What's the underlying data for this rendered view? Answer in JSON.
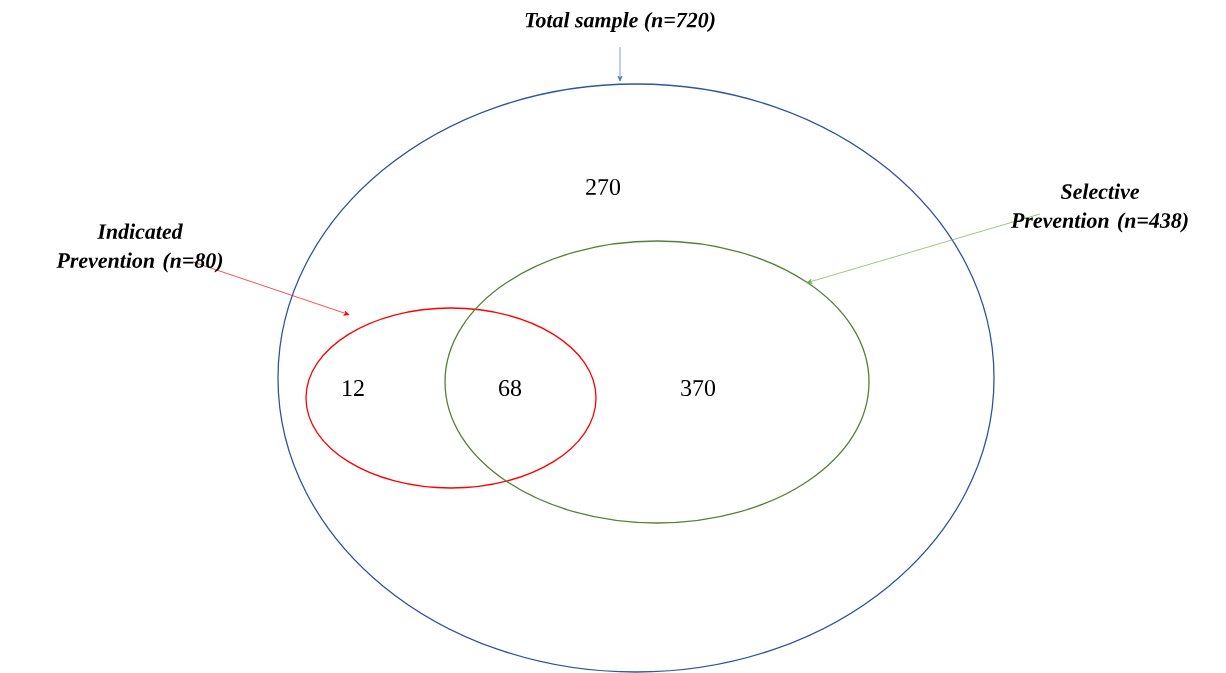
{
  "chart_data": {
    "type": "other",
    "categories": [
      null,
      null,
      null,
      null
    ],
    "values": [
      270,
      12,
      68,
      370
    ],
    "data_labels": true,
    "annotations": [
      "Total sample (n=720)",
      "Indicated Prevention (n=80)",
      "Selective Prevention (n=438)"
    ]
  }
}
